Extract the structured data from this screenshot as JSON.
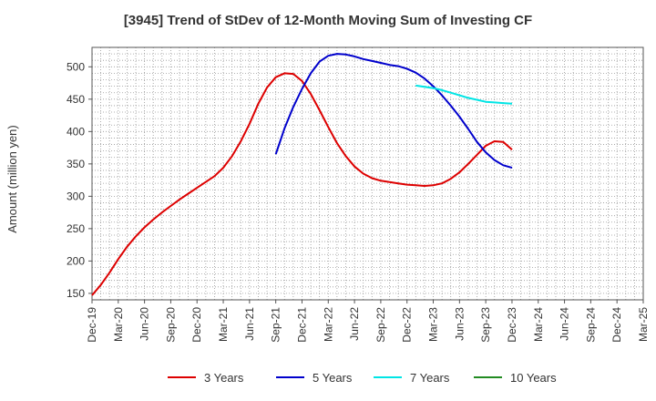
{
  "chart_data": {
    "type": "line",
    "title": "[3945]  Trend of StDev of 12-Month Moving Sum of Investing CF",
    "ylabel": "Amount (million yen)",
    "xlabel": "",
    "ylim": [
      140,
      530
    ],
    "yticks": [
      150,
      200,
      250,
      300,
      350,
      400,
      450,
      500
    ],
    "xlim": [
      "2019-12",
      "2025-03"
    ],
    "xticks": [
      "Dec-19",
      "Mar-20",
      "Jun-20",
      "Sep-20",
      "Dec-20",
      "Mar-21",
      "Jun-21",
      "Sep-21",
      "Dec-21",
      "Mar-22",
      "Jun-22",
      "Sep-22",
      "Dec-22",
      "Mar-23",
      "Jun-23",
      "Sep-23",
      "Dec-23",
      "Mar-24",
      "Jun-24",
      "Sep-24",
      "Dec-24",
      "Mar-25"
    ],
    "grid": true,
    "legend_position": "bottom",
    "series": [
      {
        "name": "3 Years",
        "color": "#dd0000",
        "points": [
          [
            "2019-12",
            147
          ],
          [
            "2020-01",
            163
          ],
          [
            "2020-02",
            182
          ],
          [
            "2020-03",
            203
          ],
          [
            "2020-04",
            222
          ],
          [
            "2020-05",
            238
          ],
          [
            "2020-06",
            252
          ],
          [
            "2020-07",
            264
          ],
          [
            "2020-08",
            275
          ],
          [
            "2020-09",
            285
          ],
          [
            "2020-10",
            295
          ],
          [
            "2020-11",
            304
          ],
          [
            "2020-12",
            313
          ],
          [
            "2021-01",
            322
          ],
          [
            "2021-02",
            331
          ],
          [
            "2021-03",
            344
          ],
          [
            "2021-04",
            362
          ],
          [
            "2021-05",
            385
          ],
          [
            "2021-06",
            412
          ],
          [
            "2021-07",
            443
          ],
          [
            "2021-08",
            468
          ],
          [
            "2021-09",
            484
          ],
          [
            "2021-10",
            490
          ],
          [
            "2021-11",
            489
          ],
          [
            "2021-12",
            478
          ],
          [
            "2022-01",
            458
          ],
          [
            "2022-02",
            433
          ],
          [
            "2022-03",
            407
          ],
          [
            "2022-04",
            382
          ],
          [
            "2022-05",
            362
          ],
          [
            "2022-06",
            346
          ],
          [
            "2022-07",
            335
          ],
          [
            "2022-08",
            328
          ],
          [
            "2022-09",
            324
          ],
          [
            "2022-10",
            322
          ],
          [
            "2022-11",
            320
          ],
          [
            "2022-12",
            318
          ],
          [
            "2023-01",
            317
          ],
          [
            "2023-02",
            316
          ],
          [
            "2023-03",
            317
          ],
          [
            "2023-04",
            320
          ],
          [
            "2023-05",
            327
          ],
          [
            "2023-06",
            337
          ],
          [
            "2023-07",
            350
          ],
          [
            "2023-08",
            364
          ],
          [
            "2023-09",
            378
          ],
          [
            "2023-10",
            385
          ],
          [
            "2023-11",
            384
          ],
          [
            "2023-12",
            372
          ]
        ]
      },
      {
        "name": "5 Years",
        "color": "#0000cc",
        "points": [
          [
            "2021-09",
            365
          ],
          [
            "2021-10",
            405
          ],
          [
            "2021-11",
            438
          ],
          [
            "2021-12",
            466
          ],
          [
            "2022-01",
            490
          ],
          [
            "2022-02",
            508
          ],
          [
            "2022-03",
            517
          ],
          [
            "2022-04",
            520
          ],
          [
            "2022-05",
            519
          ],
          [
            "2022-06",
            516
          ],
          [
            "2022-07",
            512
          ],
          [
            "2022-08",
            509
          ],
          [
            "2022-09",
            506
          ],
          [
            "2022-10",
            503
          ],
          [
            "2022-11",
            501
          ],
          [
            "2022-12",
            497
          ],
          [
            "2023-01",
            491
          ],
          [
            "2023-02",
            482
          ],
          [
            "2023-03",
            470
          ],
          [
            "2023-04",
            456
          ],
          [
            "2023-05",
            440
          ],
          [
            "2023-06",
            423
          ],
          [
            "2023-07",
            404
          ],
          [
            "2023-08",
            384
          ],
          [
            "2023-09",
            368
          ],
          [
            "2023-10",
            356
          ],
          [
            "2023-11",
            348
          ],
          [
            "2023-12",
            344
          ]
        ]
      },
      {
        "name": "7 Years",
        "color": "#00e5e5",
        "points": [
          [
            "2023-01",
            471
          ],
          [
            "2023-02",
            469
          ],
          [
            "2023-03",
            467
          ],
          [
            "2023-04",
            464
          ],
          [
            "2023-05",
            460
          ],
          [
            "2023-06",
            456
          ],
          [
            "2023-07",
            452
          ],
          [
            "2023-08",
            449
          ],
          [
            "2023-09",
            446
          ],
          [
            "2023-10",
            445
          ],
          [
            "2023-11",
            444
          ],
          [
            "2023-12",
            443
          ]
        ]
      },
      {
        "name": "10 Years",
        "color": "#228b22",
        "points": []
      }
    ]
  }
}
